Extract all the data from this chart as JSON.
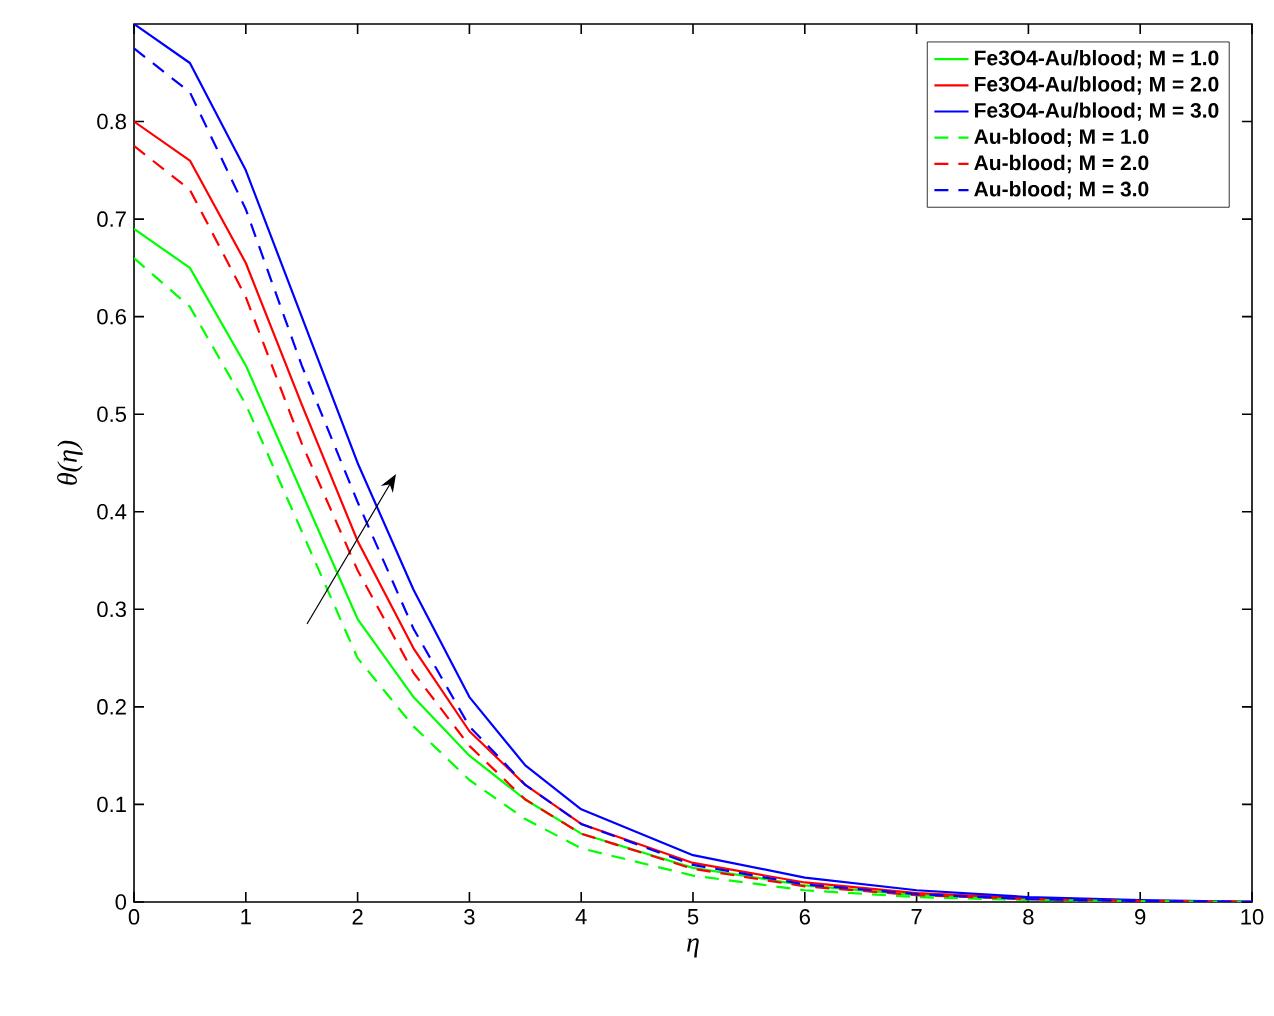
{
  "chart_data": {
    "type": "line",
    "xlabel": "η",
    "ylabel": "θ(η)",
    "x": [
      0,
      0.5,
      1,
      1.5,
      2,
      2.5,
      3,
      3.5,
      4,
      5,
      6,
      7,
      8,
      9,
      10
    ],
    "xlim": [
      0,
      10
    ],
    "ylim": [
      0,
      0.9
    ],
    "xticks": [
      0,
      1,
      2,
      3,
      4,
      5,
      6,
      7,
      8,
      9,
      10
    ],
    "yticks": [
      0,
      0.1,
      0.2,
      0.3,
      0.4,
      0.5,
      0.6,
      0.7,
      0.8
    ],
    "legend": "top right",
    "grid": false,
    "marker": "none",
    "series": [
      {
        "name": "Fe3O4-Au/blood; M = 1.0",
        "color": "#00ff00",
        "line_style": "solid",
        "values": [
          0.69,
          0.65,
          0.55,
          0.42,
          0.29,
          0.21,
          0.15,
          0.105,
          0.07,
          0.035,
          0.017,
          0.007,
          0.003,
          0.001,
          0
        ]
      },
      {
        "name": "Fe3O4-Au/blood; M = 2.0",
        "color": "#ff0000",
        "line_style": "solid",
        "values": [
          0.8,
          0.76,
          0.655,
          0.51,
          0.37,
          0.26,
          0.175,
          0.12,
          0.08,
          0.04,
          0.02,
          0.009,
          0.004,
          0.001,
          0
        ]
      },
      {
        "name": "Fe3O4-Au/blood; M = 3.0",
        "color": "#0000ff",
        "line_style": "solid",
        "values": [
          0.9,
          0.86,
          0.75,
          0.6,
          0.45,
          0.32,
          0.21,
          0.14,
          0.095,
          0.048,
          0.025,
          0.012,
          0.005,
          0.002,
          0
        ]
      },
      {
        "name": "Au-blood; M = 1.0",
        "color": "#00ff00",
        "line_style": "dashed",
        "values": [
          0.66,
          0.61,
          0.51,
          0.38,
          0.25,
          0.18,
          0.125,
          0.085,
          0.055,
          0.027,
          0.012,
          0.005,
          0.002,
          0.001,
          0
        ]
      },
      {
        "name": "Au-blood; M = 2.0",
        "color": "#ff0000",
        "line_style": "dashed",
        "values": [
          0.775,
          0.73,
          0.62,
          0.47,
          0.34,
          0.235,
          0.16,
          0.105,
          0.07,
          0.034,
          0.016,
          0.007,
          0.003,
          0.001,
          0
        ]
      },
      {
        "name": "Au-blood; M = 3.0",
        "color": "#0000ff",
        "line_style": "dashed",
        "values": [
          0.875,
          0.83,
          0.71,
          0.55,
          0.41,
          0.28,
          0.18,
          0.12,
          0.08,
          0.038,
          0.018,
          0.008,
          0.003,
          0.001,
          0
        ]
      }
    ]
  }
}
